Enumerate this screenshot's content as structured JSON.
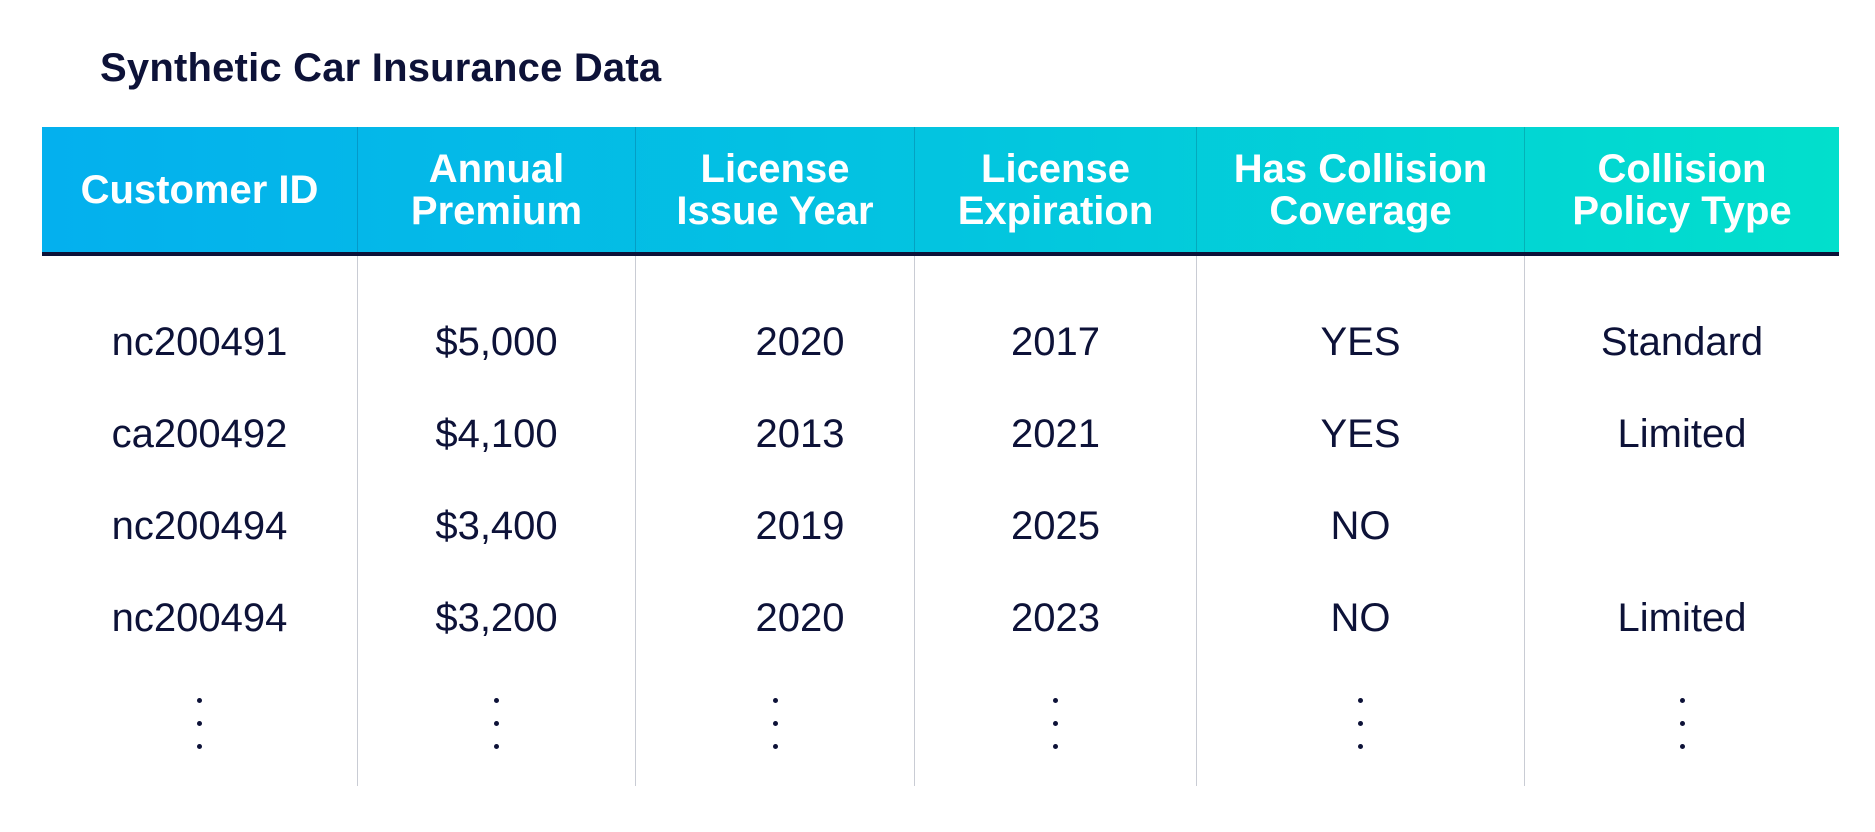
{
  "chart_data": {
    "type": "table",
    "title": "Synthetic Car Insurance Data",
    "columns": [
      "Customer ID",
      "Annual\nPremium",
      "License\nIssue Year",
      "License\nExpiration",
      "Has Collision\nCoverage",
      "Collision\nPolicy Type"
    ],
    "rows": [
      [
        "nc200491",
        "$5,000",
        "2020",
        "2017",
        "YES",
        "Standard"
      ],
      [
        "ca200492",
        "$4,100",
        "2013",
        "2021",
        "YES",
        "Limited"
      ],
      [
        "nc200494",
        "$3,400",
        "2019",
        "2025",
        "NO",
        ""
      ],
      [
        "nc200494",
        "$3,200",
        "2020",
        "2023",
        "NO",
        "Limited"
      ]
    ],
    "continues": true
  },
  "colors": {
    "header_gradient_start": "#04b0ee",
    "header_gradient_end": "#02dfcc",
    "header_text": "#ffffff",
    "body_text": "#0d1238",
    "divider": "#0d1238",
    "column_rule": "#c9ccd4"
  }
}
